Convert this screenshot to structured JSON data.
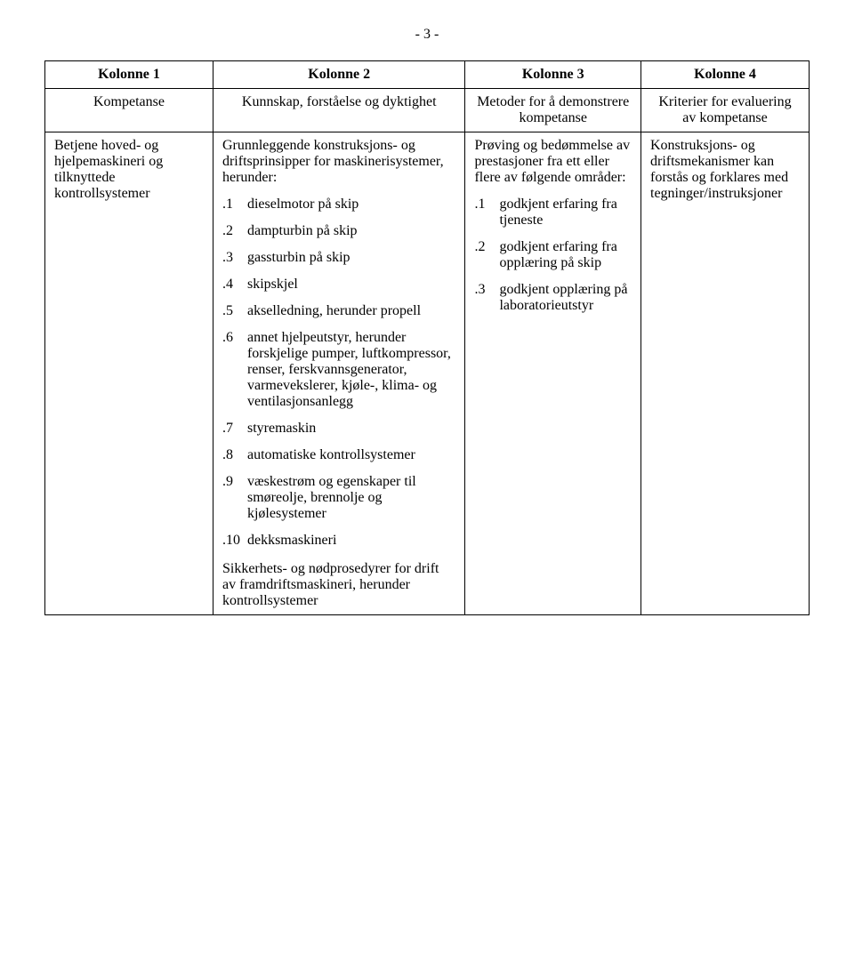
{
  "page_number": "- 3 -",
  "headers": {
    "col1": "Kolonne 1",
    "col2": "Kolonne 2",
    "col3": "Kolonne 3",
    "col4": "Kolonne 4"
  },
  "subheaders": {
    "col1": "Kompetanse",
    "col2": "Kunnskap, forståelse og dyktighet",
    "col3": "Metoder for å demonstrere kompetanse",
    "col4": "Kriterier for evaluering av kompetanse"
  },
  "row": {
    "c1": "Betjene hoved- og hjelpemaskineri og tilknyttede kontrollsystemer",
    "c2": {
      "intro": "Grunnleggende konstruksjons- og driftsprinsipper for maskinerisystemer, herunder:",
      "items": [
        {
          "n": ".1",
          "t": "dieselmotor på skip"
        },
        {
          "n": ".2",
          "t": "dampturbin på skip"
        },
        {
          "n": ".3",
          "t": "gassturbin på skip"
        },
        {
          "n": ".4",
          "t": "skipskjel"
        },
        {
          "n": ".5",
          "t": "akselledning, herunder propell"
        },
        {
          "n": ".6",
          "t": "annet hjelpeutstyr, herunder forskjelige pumper, luftkompressor, renser, ferskvannsgenerator, varmevekslerer, kjøle-, klima- og ventilasjonsanlegg"
        },
        {
          "n": ".7",
          "t": "styremaskin"
        },
        {
          "n": ".8",
          "t": "automatiske kontrollsystemer"
        },
        {
          "n": ".9",
          "t": "væskestrøm og egenskaper til smøreolje, brennolje og kjølesystemer"
        },
        {
          "n": ".10",
          "t": "dekksmaskineri"
        }
      ],
      "tail": "Sikkerhets- og nødprosedyrer for drift av framdriftsmaskineri, herunder kontrollsystemer"
    },
    "c3": {
      "intro": "Prøving og bedømmelse av prestasjoner fra ett eller flere av følgende områder:",
      "items": [
        {
          "n": ".1",
          "t": "godkjent erfaring fra tjeneste"
        },
        {
          "n": ".2",
          "t": "godkjent erfaring fra opplæring på skip"
        },
        {
          "n": ".3",
          "t": "godkjent opplæring på laboratorieutstyr"
        }
      ]
    },
    "c4": "Konstruksjons- og driftsmekanismer kan forstås og forklares med tegninger/instruksjoner"
  }
}
